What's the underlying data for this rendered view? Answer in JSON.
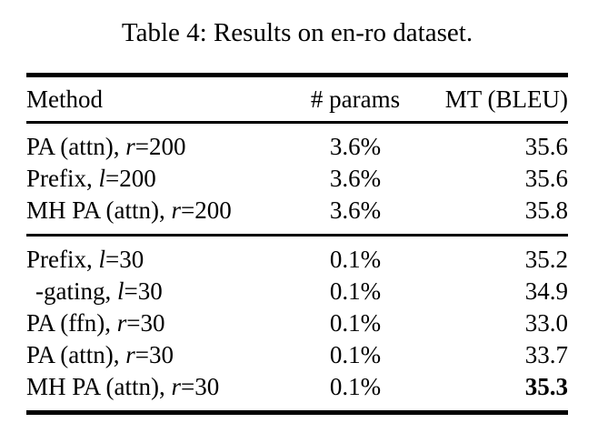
{
  "title": "Table 4: Results on en-ro dataset.",
  "table": {
    "columns": {
      "method": "Method",
      "params": "# params",
      "bleu": "MT (BLEU)"
    },
    "groups": [
      {
        "rows": [
          {
            "method_pre": "PA (attn), ",
            "method_var": "r",
            "method_post": "=200",
            "params": "3.6%",
            "bleu": "35.6"
          },
          {
            "method_pre": "Prefix, ",
            "method_var": "l",
            "method_post": "=200",
            "params": "3.6%",
            "bleu": "35.6"
          },
          {
            "method_pre": "MH PA (attn), ",
            "method_var": "r",
            "method_post": "=200",
            "params": "3.6%",
            "bleu": "35.8"
          }
        ]
      },
      {
        "rows": [
          {
            "method_pre": "Prefix, ",
            "method_var": "l",
            "method_post": "=30",
            "params": "0.1%",
            "bleu": "35.2"
          },
          {
            "method_pre": "-gating, ",
            "method_var": "l",
            "method_post": "=30",
            "params": "0.1%",
            "bleu": "34.9",
            "indented": true
          },
          {
            "method_pre": "PA (ffn), ",
            "method_var": "r",
            "method_post": "=30",
            "params": "0.1%",
            "bleu": "33.0"
          },
          {
            "method_pre": "PA (attn), ",
            "method_var": "r",
            "method_post": "=30",
            "params": "0.1%",
            "bleu": "33.7"
          },
          {
            "method_pre": "MH PA (attn), ",
            "method_var": "r",
            "method_post": "=30",
            "params": "0.1%",
            "bleu": "35.3",
            "bleu_bold": true
          }
        ]
      }
    ],
    "text_color": "#000000",
    "background_color": "#ffffff"
  }
}
